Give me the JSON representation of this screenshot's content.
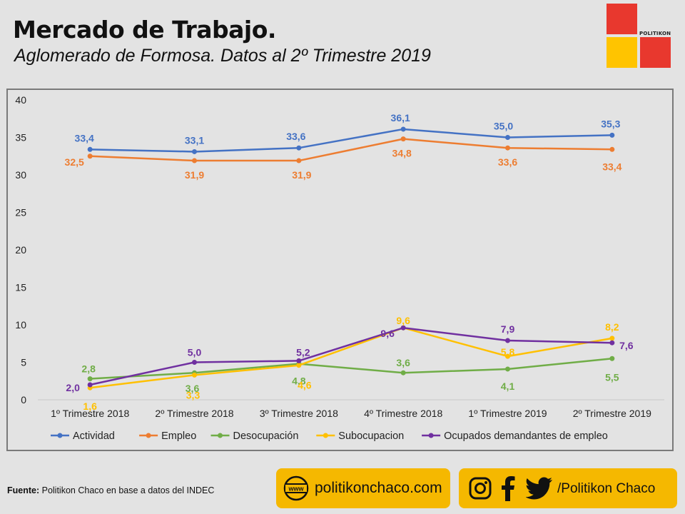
{
  "header": {
    "title": "Mercado de Trabajo.",
    "subtitle": "Aglomerado de Formosa. Datos al 2º Trimestre 2019"
  },
  "logo": {
    "text": "POLITIKON"
  },
  "footer": {
    "source_label": "Fuente:",
    "source_text": " Politikon  Chaco en base a datos del INDEC",
    "website": "politikonchaco.com",
    "social_handle": "/Politikon  Chaco",
    "www_icon": "www-globe-icon",
    "social_icons": [
      "instagram-icon",
      "facebook-icon",
      "twitter-icon"
    ]
  },
  "colors": {
    "background": "#e3e3e3",
    "pill": "#f5b800",
    "logo_red": "#e8382e",
    "logo_yellow": "#ffc400"
  },
  "chart_data": {
    "type": "line",
    "title": "",
    "xlabel": "",
    "ylabel": "",
    "ylim": [
      0,
      40
    ],
    "yticks": [
      0,
      5,
      10,
      15,
      20,
      25,
      30,
      35,
      40
    ],
    "grid": false,
    "legend_position": "bottom",
    "categories": [
      "1º Trimestre 2018",
      "2º Trimestre 2018",
      "3º Trimestre 2018",
      "4º Trimestre 2018",
      "1º Trimestre 2019",
      "2º Trimestre 2019"
    ],
    "series": [
      {
        "name": "Actividad",
        "color": "#4472c4",
        "values": [
          33.4,
          33.1,
          33.6,
          36.1,
          35.0,
          35.3
        ],
        "labels": [
          "33,4",
          "33,1",
          "33,6",
          "36,1",
          "35,0",
          "35,3"
        ]
      },
      {
        "name": "Empleo",
        "color": "#ed7d31",
        "values": [
          32.5,
          31.9,
          31.9,
          34.8,
          33.6,
          33.4
        ],
        "labels": [
          "32,5",
          "31,9",
          "31,9",
          "34,8",
          "33,6",
          "33,4"
        ]
      },
      {
        "name": "Desocupación",
        "color": "#70ad47",
        "values": [
          2.8,
          3.6,
          4.8,
          3.6,
          4.1,
          5.5
        ],
        "labels": [
          "2,8",
          "3,6",
          "4,8",
          "3,6",
          "4,1",
          "5,5"
        ]
      },
      {
        "name": "Subocupacion",
        "color": "#ffc000",
        "values": [
          1.6,
          3.3,
          4.6,
          9.6,
          5.8,
          8.2
        ],
        "labels": [
          "1,6",
          "3,3",
          "4,6",
          "9,6",
          "5,8",
          "8,2"
        ]
      },
      {
        "name": "Ocupados demandantes de empleo",
        "color": "#7030a0",
        "values": [
          2.0,
          5.0,
          5.2,
          9.6,
          7.9,
          7.6
        ],
        "labels": [
          "2,0",
          "5,0",
          "5,2",
          "9,6",
          "7,9",
          "7,6"
        ]
      }
    ]
  }
}
